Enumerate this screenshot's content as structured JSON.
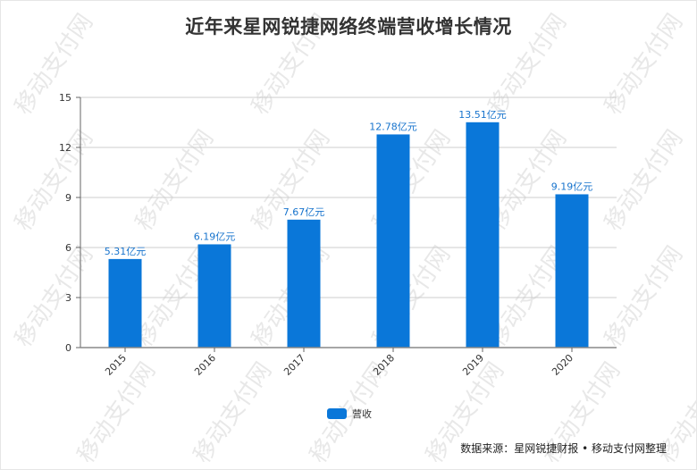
{
  "title": "近年来星网锐捷网络终端营收增长情况",
  "watermark": "移动支付网",
  "legend": {
    "label": "营收",
    "color": "#0a77d9"
  },
  "source": "数据来源：星网锐捷财报 • 移动支付网整理",
  "chart_data": {
    "type": "bar",
    "title": "近年来星网锐捷网络终端营收增长情况",
    "xlabel": "",
    "ylabel": "",
    "categories": [
      "2015",
      "2016",
      "2017",
      "2018",
      "2019",
      "2020"
    ],
    "series": [
      {
        "name": "营收",
        "values": [
          5.31,
          6.19,
          7.67,
          12.78,
          13.51,
          9.19
        ],
        "unit": "亿元",
        "color": "#0a77d9"
      }
    ],
    "data_labels": [
      "5.31亿元",
      "6.19亿元",
      "7.67亿元",
      "12.78亿元",
      "13.51亿元",
      "9.19亿元"
    ],
    "yticks": [
      0,
      3,
      6,
      9,
      12,
      15
    ],
    "ylim": [
      0,
      15
    ],
    "grid": true,
    "legend_position": "bottom"
  }
}
